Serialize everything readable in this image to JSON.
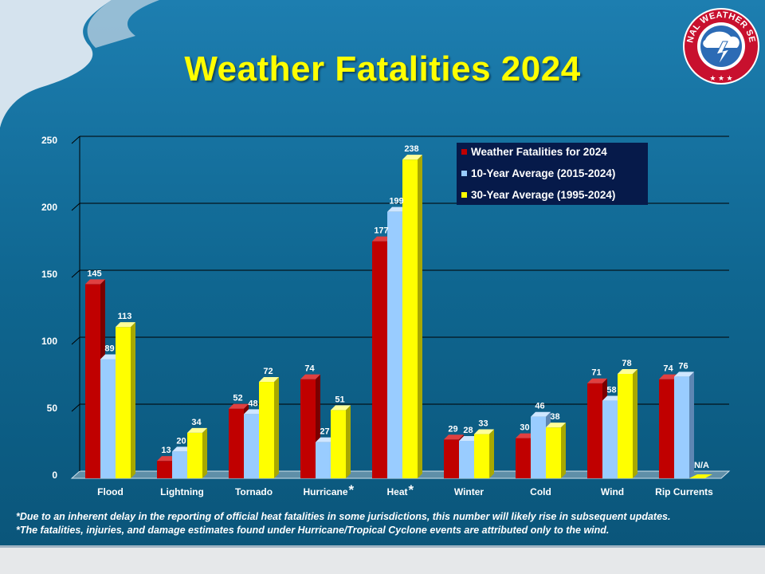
{
  "title": "Weather Fatalities 2024",
  "footnotes": [
    "*Due to an inherent delay in the reporting of official heat fatalities in some jurisdictions, this number will likely rise in subsequent updates.",
    "*The fatalities, injuries, and damage estimates found under Hurricane/Tropical Cyclone events are attributed only to the wind."
  ],
  "logo": {
    "text": "NATIONAL WEATHER SERVICE"
  },
  "colors": {
    "fatalities": "#c00000",
    "avg10": "#99ccff",
    "avg30": "#ffff00",
    "legend_bg": "#061a4a"
  },
  "chart_data": {
    "type": "bar",
    "title": "Weather Fatalities 2024",
    "xlabel": "",
    "ylabel": "",
    "ylim": [
      0,
      250
    ],
    "yticks": [
      0,
      50,
      100,
      150,
      200,
      250
    ],
    "categories": [
      "Flood",
      "Lightning",
      "Tornado",
      "Hurricane",
      "Heat",
      "Winter",
      "Cold",
      "Wind",
      "Rip Currents"
    ],
    "category_marks": [
      "",
      "",
      "",
      "*",
      "*",
      "",
      "",
      "",
      ""
    ],
    "series": [
      {
        "name": "Weather Fatalities for 2024",
        "values": [
          145,
          13,
          52,
          74,
          177,
          29,
          30,
          71,
          74
        ]
      },
      {
        "name": "10-Year Average (2015-2024)",
        "values": [
          89,
          20,
          48,
          27,
          199,
          28,
          46,
          58,
          76
        ]
      },
      {
        "name": "30-Year Average (1995-2024)",
        "values": [
          113,
          34,
          72,
          51,
          238,
          33,
          38,
          78,
          null
        ]
      }
    ],
    "missing_label": "N/A",
    "legend_position": "top-right",
    "grid": true
  }
}
